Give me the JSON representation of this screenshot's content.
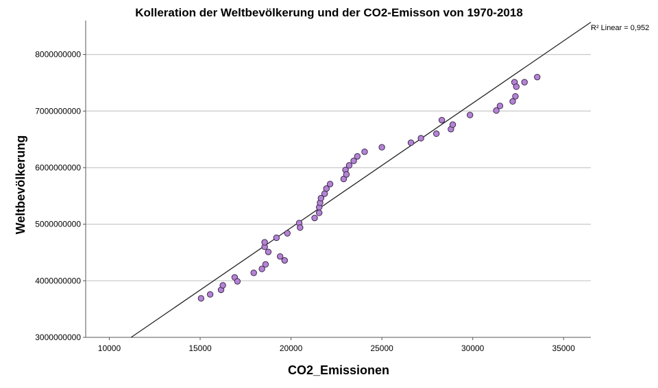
{
  "chart_data": {
    "type": "scatter",
    "title": "Kolleration der Weltbevölkerung und der CO2-Emisson von 1970-2018",
    "xlabel": "CO2_Emissionen",
    "ylabel": "Weltbevölkerung",
    "xlim": [
      8700,
      36500
    ],
    "ylim": [
      3000000000,
      8600000000
    ],
    "xticks": [
      10000,
      15000,
      20000,
      25000,
      30000,
      35000
    ],
    "yticks": [
      3000000000,
      4000000000,
      5000000000,
      6000000000,
      7000000000,
      8000000000
    ],
    "x_tick_labels": [
      "10000",
      "15000",
      "20000",
      "25000",
      "30000",
      "35000"
    ],
    "y_tick_labels": [
      "3000000000",
      "4000000000",
      "5000000000",
      "6000000000",
      "7000000000",
      "8000000000"
    ],
    "grid": "horizontal",
    "point_color": "#b583d6",
    "points": [
      [
        15050,
        3690000000
      ],
      [
        15550,
        3760000000
      ],
      [
        16150,
        3840000000
      ],
      [
        16250,
        3920000000
      ],
      [
        16900,
        4060000000
      ],
      [
        17050,
        3990000000
      ],
      [
        17950,
        4140000000
      ],
      [
        18400,
        4210000000
      ],
      [
        18600,
        4290000000
      ],
      [
        18550,
        4600000000
      ],
      [
        18550,
        4680000000
      ],
      [
        18750,
        4510000000
      ],
      [
        19200,
        4760000000
      ],
      [
        19400,
        4430000000
      ],
      [
        19650,
        4360000000
      ],
      [
        19800,
        4840000000
      ],
      [
        20450,
        5020000000
      ],
      [
        20500,
        4940000000
      ],
      [
        21300,
        5110000000
      ],
      [
        21550,
        5200000000
      ],
      [
        21550,
        5300000000
      ],
      [
        21600,
        5380000000
      ],
      [
        21650,
        5460000000
      ],
      [
        21850,
        5540000000
      ],
      [
        21950,
        5630000000
      ],
      [
        22150,
        5710000000
      ],
      [
        22900,
        5800000000
      ],
      [
        23000,
        5960000000
      ],
      [
        23050,
        5880000000
      ],
      [
        23200,
        6040000000
      ],
      [
        23450,
        6120000000
      ],
      [
        23650,
        6200000000
      ],
      [
        24050,
        6280000000
      ],
      [
        25000,
        6360000000
      ],
      [
        26600,
        6440000000
      ],
      [
        27150,
        6520000000
      ],
      [
        28000,
        6600000000
      ],
      [
        28300,
        6840000000
      ],
      [
        28800,
        6680000000
      ],
      [
        28900,
        6760000000
      ],
      [
        29850,
        6930000000
      ],
      [
        31300,
        7010000000
      ],
      [
        31500,
        7090000000
      ],
      [
        32200,
        7170000000
      ],
      [
        32350,
        7260000000
      ],
      [
        32300,
        7510000000
      ],
      [
        32400,
        7430000000
      ],
      [
        32850,
        7510000000
      ],
      [
        33550,
        7600000000
      ]
    ],
    "fit": {
      "label": "R² Linear = 0,952",
      "start": [
        11200,
        3000000000
      ],
      "end": [
        36500,
        8570000000
      ]
    }
  }
}
